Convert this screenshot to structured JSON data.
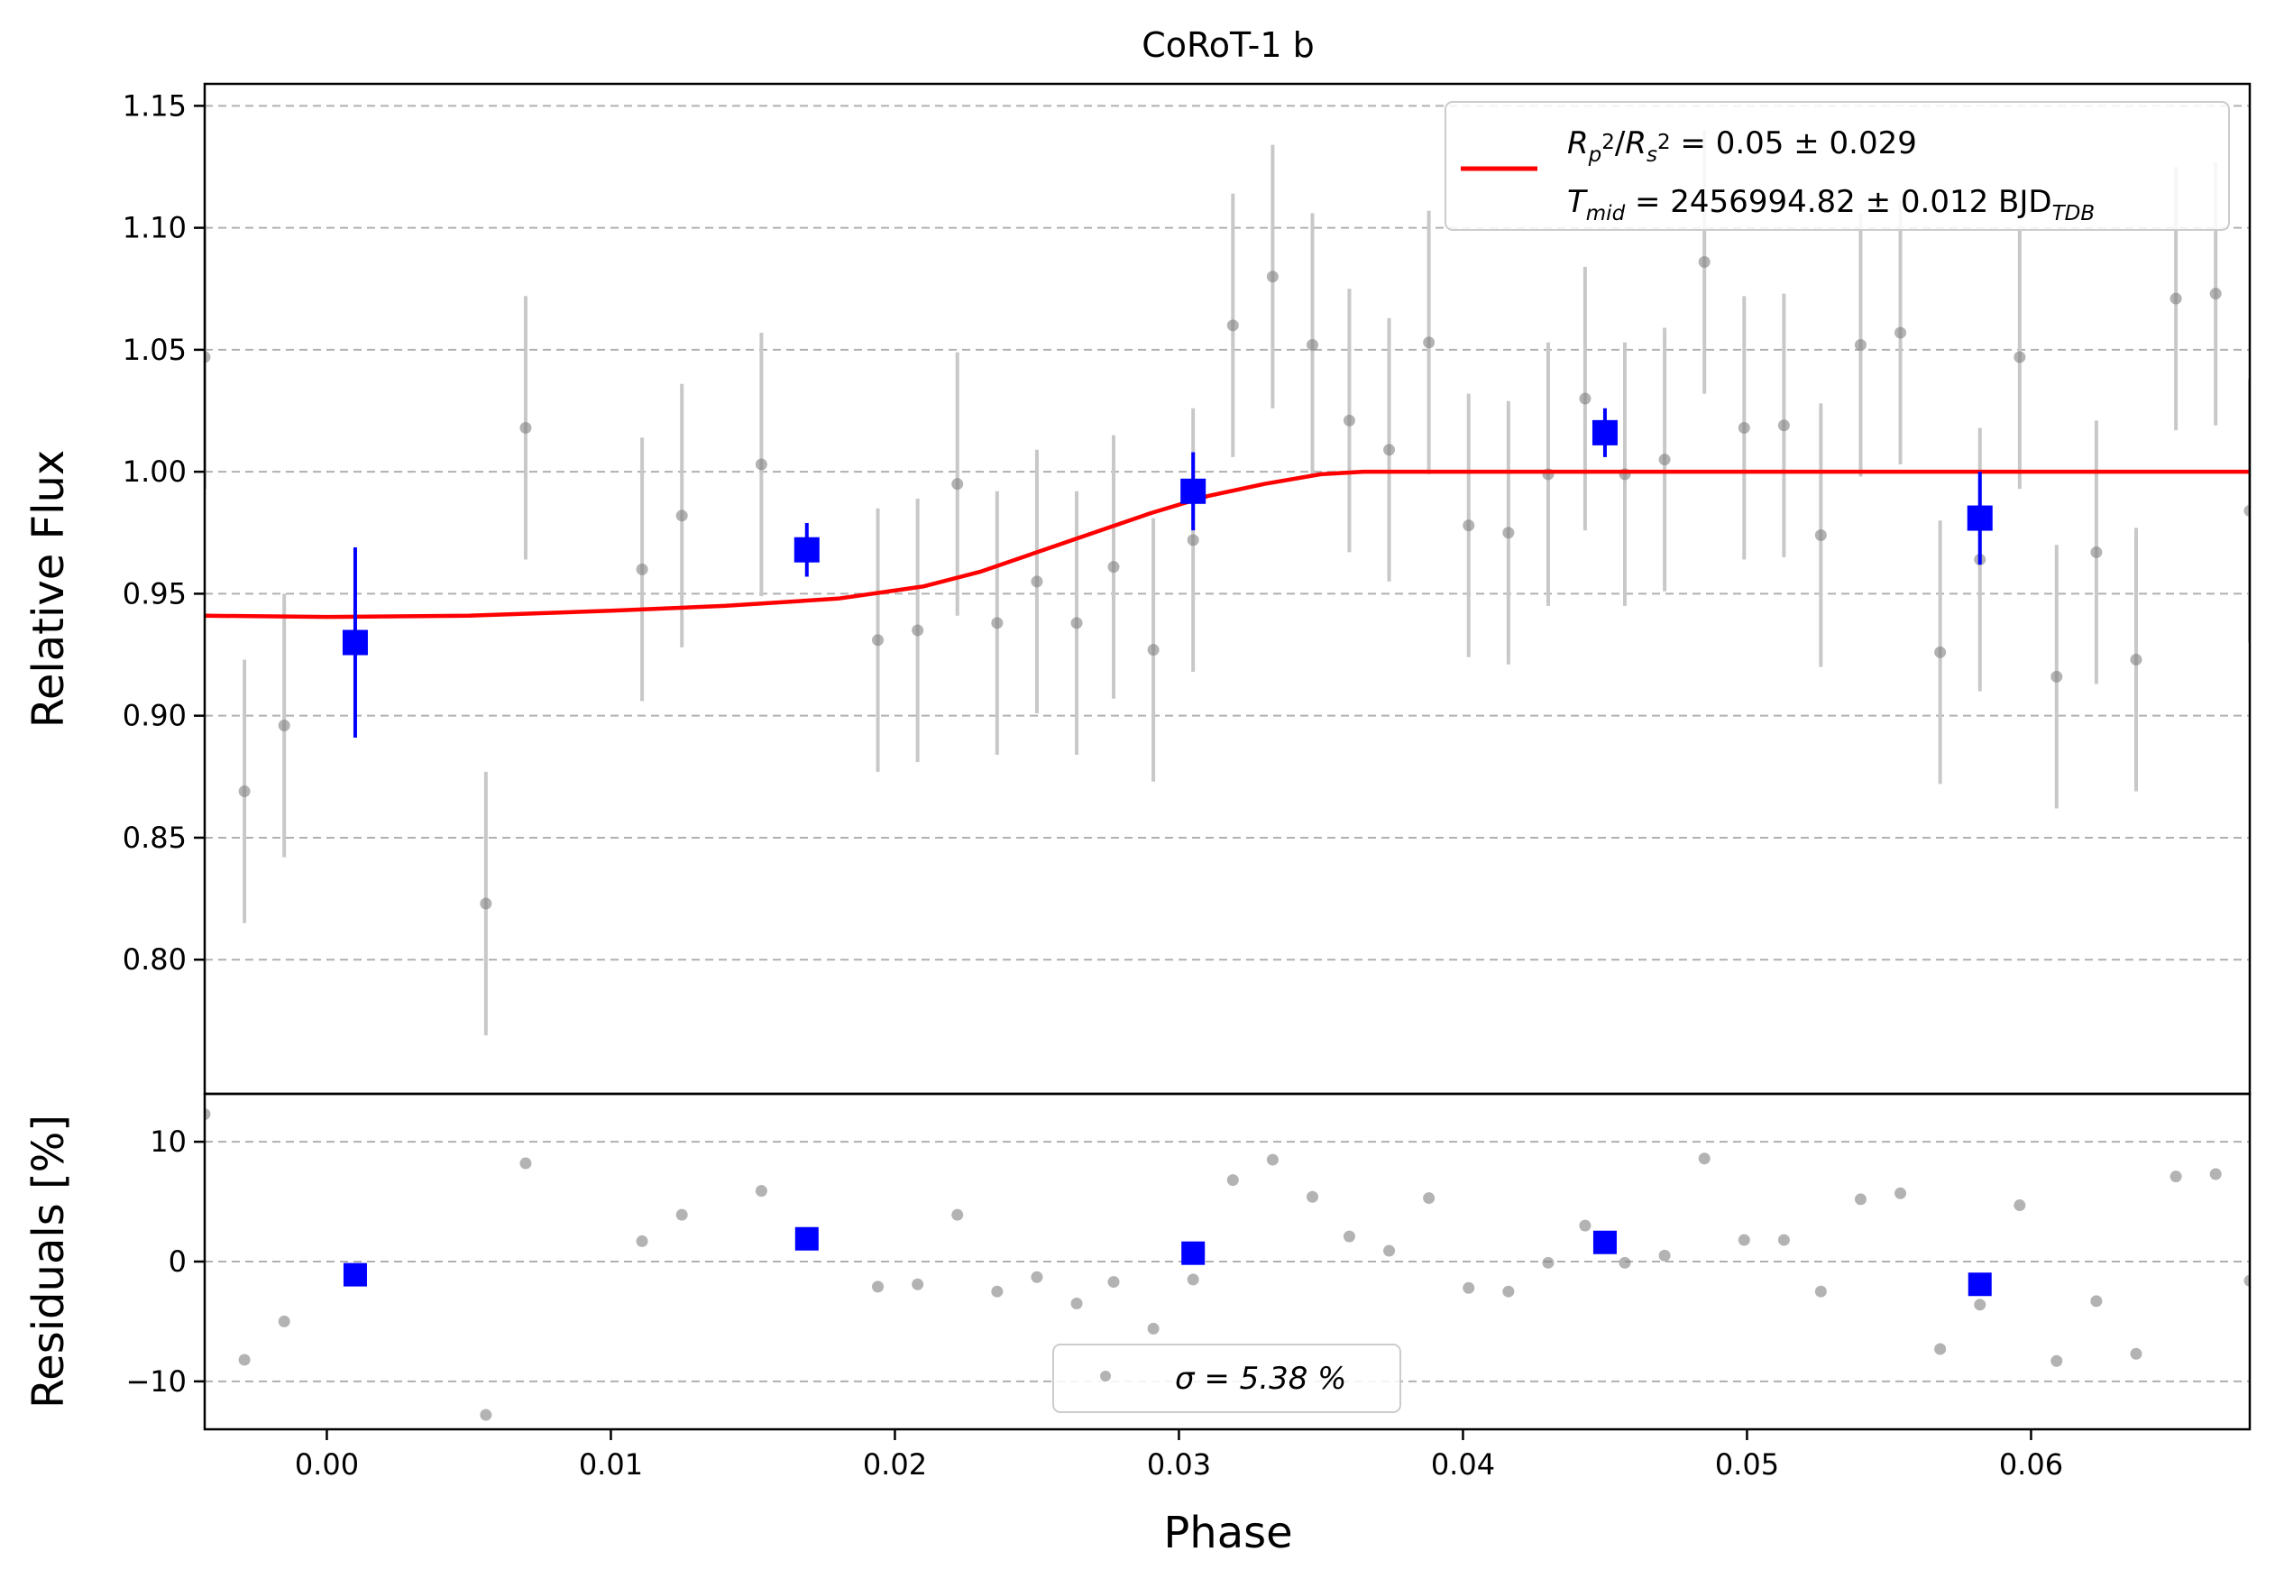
{
  "chart_data": {
    "type": "scatter",
    "title": "CoRoT-1 b",
    "xlabel": "Phase",
    "ylabel_top": "Relative Flux",
    "ylabel_bottom": "Residuals [%]",
    "xlim": [
      -0.0043,
      0.0677
    ],
    "ylim_top": [
      0.745,
      1.159
    ],
    "ylim_bottom": [
      -14,
      14
    ],
    "x_ticks": [
      0.0,
      0.01,
      0.02,
      0.03,
      0.04,
      0.05,
      0.06
    ],
    "x_tick_labels": [
      "0.00",
      "0.01",
      "0.02",
      "0.03",
      "0.04",
      "0.05",
      "0.06"
    ],
    "y_ticks_top": [
      0.8,
      0.85,
      0.9,
      0.95,
      1.0,
      1.05,
      1.1,
      1.15
    ],
    "y_tick_labels_top": [
      "0.80",
      "0.85",
      "0.90",
      "0.95",
      "1.00",
      "1.05",
      "1.10",
      "1.15"
    ],
    "y_ticks_bottom": [
      -10,
      0,
      10
    ],
    "y_tick_labels_bottom": [
      "−10",
      "0",
      "10"
    ],
    "grid": "horizontal dashed",
    "legend_top": {
      "placement": "top-right",
      "line1": "R_p^2/R_s^2 = 0.05 ± 0.029",
      "line2": "T_mid = 2456994.82 ± 0.012 BJD_TDB"
    },
    "legend_bottom": {
      "placement": "bottom-center",
      "label": "σ = 5.38 %"
    },
    "colors": {
      "raw": "#808080",
      "raw_err": "#c8c8c8",
      "binned": "#0000ff",
      "model": "#ff0000",
      "grid": "#b0b0b0"
    },
    "raw_points": [
      {
        "x": -0.0043,
        "y": 1.047,
        "err": 0.054,
        "res": 12.3
      },
      {
        "x": -0.0029,
        "y": 0.869,
        "err": 0.054,
        "res": -8.2
      },
      {
        "x": -0.0015,
        "y": 0.896,
        "err": 0.054,
        "res": -5.0
      },
      {
        "x": 0.0056,
        "y": 0.823,
        "err": 0.054,
        "res": -12.8
      },
      {
        "x": 0.007,
        "y": 1.018,
        "err": 0.054,
        "res": 8.2
      },
      {
        "x": 0.0111,
        "y": 0.96,
        "err": 0.054,
        "res": 1.7
      },
      {
        "x": 0.0125,
        "y": 0.982,
        "err": 0.054,
        "res": 3.9
      },
      {
        "x": 0.0153,
        "y": 1.003,
        "err": 0.054,
        "res": 5.9
      },
      {
        "x": 0.0194,
        "y": 0.931,
        "err": 0.054,
        "res": -2.1
      },
      {
        "x": 0.0208,
        "y": 0.935,
        "err": 0.054,
        "res": -1.9
      },
      {
        "x": 0.0222,
        "y": 0.995,
        "err": 0.054,
        "res": 3.9
      },
      {
        "x": 0.0236,
        "y": 0.938,
        "err": 0.054,
        "res": -2.5
      },
      {
        "x": 0.025,
        "y": 0.955,
        "err": 0.054,
        "res": -1.3
      },
      {
        "x": 0.0264,
        "y": 0.938,
        "err": 0.054,
        "res": -3.5
      },
      {
        "x": 0.0277,
        "y": 0.961,
        "err": 0.054,
        "res": -1.7
      },
      {
        "x": 0.0291,
        "y": 0.927,
        "err": 0.054,
        "res": -5.6
      },
      {
        "x": 0.0305,
        "y": 0.972,
        "err": 0.054,
        "res": -1.5
      },
      {
        "x": 0.0319,
        "y": 1.06,
        "err": 0.054,
        "res": 6.8
      },
      {
        "x": 0.0333,
        "y": 1.08,
        "err": 0.054,
        "res": 8.5
      },
      {
        "x": 0.0347,
        "y": 1.052,
        "err": 0.054,
        "res": 5.4
      },
      {
        "x": 0.036,
        "y": 1.021,
        "err": 0.054,
        "res": 2.1
      },
      {
        "x": 0.0374,
        "y": 1.009,
        "err": 0.054,
        "res": 0.9
      },
      {
        "x": 0.0388,
        "y": 1.053,
        "err": 0.054,
        "res": 5.3
      },
      {
        "x": 0.0402,
        "y": 0.978,
        "err": 0.054,
        "res": -2.2
      },
      {
        "x": 0.0416,
        "y": 0.975,
        "err": 0.054,
        "res": -2.5
      },
      {
        "x": 0.043,
        "y": 0.999,
        "err": 0.054,
        "res": -0.1
      },
      {
        "x": 0.0443,
        "y": 1.03,
        "err": 0.054,
        "res": 3.0
      },
      {
        "x": 0.0457,
        "y": 0.999,
        "err": 0.054,
        "res": -0.1
      },
      {
        "x": 0.0471,
        "y": 1.005,
        "err": 0.054,
        "res": 0.5
      },
      {
        "x": 0.0485,
        "y": 1.086,
        "err": 0.054,
        "res": 8.6
      },
      {
        "x": 0.0499,
        "y": 1.018,
        "err": 0.054,
        "res": 1.8
      },
      {
        "x": 0.0513,
        "y": 1.019,
        "err": 0.054,
        "res": 1.8
      },
      {
        "x": 0.0526,
        "y": 0.974,
        "err": 0.054,
        "res": -2.5
      },
      {
        "x": 0.054,
        "y": 1.052,
        "err": 0.054,
        "res": 5.2
      },
      {
        "x": 0.0554,
        "y": 1.057,
        "err": 0.054,
        "res": 5.7
      },
      {
        "x": 0.0568,
        "y": 0.926,
        "err": 0.054,
        "res": -7.3
      },
      {
        "x": 0.0582,
        "y": 0.964,
        "err": 0.054,
        "res": -3.6
      },
      {
        "x": 0.0596,
        "y": 1.047,
        "err": 0.054,
        "res": 4.7
      },
      {
        "x": 0.0609,
        "y": 0.916,
        "err": 0.054,
        "res": -8.3
      },
      {
        "x": 0.0623,
        "y": 0.967,
        "err": 0.054,
        "res": -3.3
      },
      {
        "x": 0.0637,
        "y": 0.923,
        "err": 0.054,
        "res": -7.7
      },
      {
        "x": 0.0651,
        "y": 1.071,
        "err": 0.054,
        "res": 7.1
      },
      {
        "x": 0.0665,
        "y": 1.073,
        "err": 0.054,
        "res": 7.3
      },
      {
        "x": 0.0677,
        "y": 0.984,
        "err": 0.054,
        "res": -1.6
      }
    ],
    "binned_points": [
      {
        "x": 0.001,
        "y": 0.93,
        "err": 0.039,
        "res": -1.1
      },
      {
        "x": 0.0169,
        "y": 0.968,
        "err": 0.011,
        "res": 1.9
      },
      {
        "x": 0.0305,
        "y": 0.992,
        "err": 0.016,
        "res": 0.7
      },
      {
        "x": 0.045,
        "y": 1.016,
        "err": 0.01,
        "res": 1.6
      },
      {
        "x": 0.0582,
        "y": 0.981,
        "err": 0.019,
        "res": -1.9
      }
    ],
    "model_curve": {
      "x": [
        -0.0043,
        0.0,
        0.005,
        0.01,
        0.014,
        0.018,
        0.021,
        0.023,
        0.025,
        0.027,
        0.029,
        0.031,
        0.033,
        0.035,
        0.0365,
        0.04,
        0.05,
        0.06,
        0.0677
      ],
      "y": [
        0.941,
        0.9405,
        0.941,
        0.943,
        0.945,
        0.948,
        0.953,
        0.959,
        0.967,
        0.975,
        0.983,
        0.99,
        0.995,
        0.999,
        1.0,
        1.0,
        1.0,
        1.0,
        1.0
      ]
    }
  }
}
